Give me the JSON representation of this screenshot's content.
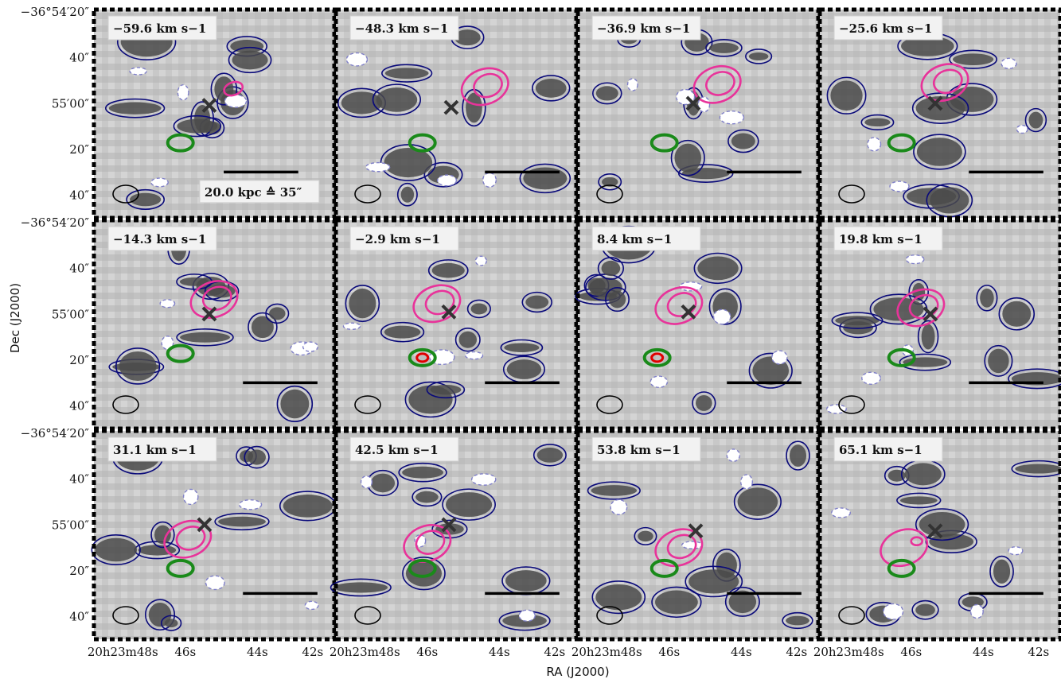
{
  "figure": {
    "axis_titles": {
      "x": "RA (J2000)",
      "y": "Dec (J2000)"
    },
    "dec_ticks": [
      "−36°54′20″",
      "40″",
      "55′00″",
      "20″",
      "40″"
    ],
    "ra_ticks": [
      "20h23m48s",
      "46s",
      "44s",
      "42s"
    ],
    "scale_label": "20.0 kpc ≙ 35″",
    "panels": [
      {
        "velocity": "−59.6 km s−1",
        "pink_ellipses": 1,
        "red_marker": false
      },
      {
        "velocity": "−48.3 km s−1",
        "pink_ellipses": 2,
        "red_marker": false
      },
      {
        "velocity": "−36.9 km s−1",
        "pink_ellipses": 2,
        "red_marker": false
      },
      {
        "velocity": "−25.6 km s−1",
        "pink_ellipses": 2,
        "red_marker": false
      },
      {
        "velocity": "−14.3 km s−1",
        "pink_ellipses": 2,
        "red_marker": false
      },
      {
        "velocity": "−2.9 km s−1",
        "pink_ellipses": 2,
        "red_marker": true
      },
      {
        "velocity": "8.4 km s−1",
        "pink_ellipses": 2,
        "red_marker": true
      },
      {
        "velocity": "19.8 km s−1",
        "pink_ellipses": 2,
        "red_marker": false
      },
      {
        "velocity": "31.1 km s−1",
        "pink_ellipses": 2,
        "red_marker": false
      },
      {
        "velocity": "42.5 km s−1",
        "pink_ellipses": 2,
        "red_marker": false
      },
      {
        "velocity": "53.8 km s−1",
        "pink_ellipses": 2,
        "red_marker": false
      },
      {
        "velocity": "65.1 km s−1",
        "pink_ellipses": 1,
        "red_marker": false
      }
    ],
    "colors": {
      "positive_contour": "#0a0a7a",
      "negative_contour": "#8080c8",
      "pink": "#e8339a",
      "green": "#1a8a1a",
      "red": "#e00000"
    }
  }
}
